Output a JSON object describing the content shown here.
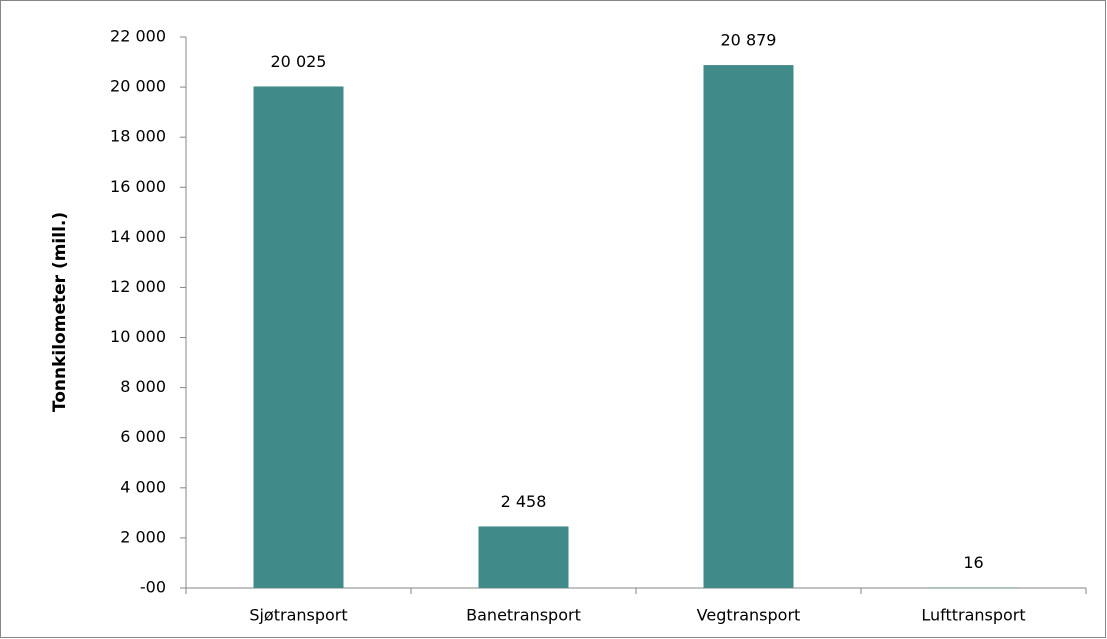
{
  "chart_data": {
    "type": "bar",
    "y_label": "Tonnkilometer (mill.)",
    "categories": [
      "Sjøtransport",
      "Banetransport",
      "Vegtransport",
      "Lufttransport"
    ],
    "values": [
      20025,
      2458,
      20879,
      16
    ],
    "value_labels": [
      "20 025",
      "2 458",
      "20 879",
      "16"
    ],
    "color": "#418a8a",
    "ylim": [
      0,
      22000
    ],
    "yticks": [
      {
        "value": 0,
        "label": "-00"
      },
      {
        "value": 2000,
        "label": "2 000"
      },
      {
        "value": 4000,
        "label": "4 000"
      },
      {
        "value": 6000,
        "label": "6 000"
      },
      {
        "value": 8000,
        "label": "8 000"
      },
      {
        "value": 10000,
        "label": "10 000"
      },
      {
        "value": 12000,
        "label": "12 000"
      },
      {
        "value": 14000,
        "label": "14 000"
      },
      {
        "value": 16000,
        "label": "16 000"
      },
      {
        "value": 18000,
        "label": "18 000"
      },
      {
        "value": 20000,
        "label": "20 000"
      },
      {
        "value": 22000,
        "label": "22 000"
      }
    ],
    "grid": false
  }
}
